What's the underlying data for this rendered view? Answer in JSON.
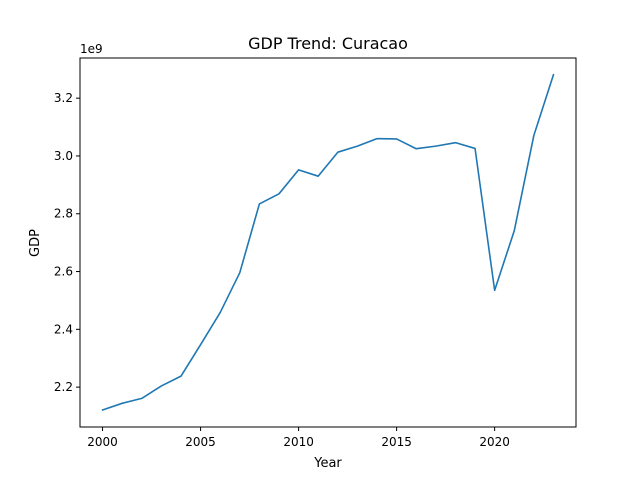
{
  "chart_data": {
    "type": "line",
    "title": "GDP Trend: Curacao",
    "xlabel": "Year",
    "ylabel": "GDP",
    "y_offset_label": "1e9",
    "xlim": [
      1998.85,
      2024.15
    ],
    "ylim": [
      2.062,
      3.339
    ],
    "x_ticks": [
      2000,
      2005,
      2010,
      2015,
      2020
    ],
    "x_tick_labels": [
      "2000",
      "2005",
      "2010",
      "2015",
      "2020"
    ],
    "y_ticks": [
      2.2,
      2.4,
      2.6,
      2.8,
      3.0,
      3.2
    ],
    "y_tick_labels": [
      "2.2",
      "2.4",
      "2.6",
      "2.8",
      "3.0",
      "3.2"
    ],
    "grid": false,
    "legend": "none",
    "color": "#1f77b4",
    "series": [
      {
        "x": [
          2000,
          2001,
          2002,
          2003,
          2004,
          2005,
          2006,
          2007,
          2008,
          2009,
          2010,
          2011,
          2012,
          2013,
          2014,
          2015,
          2016,
          2017,
          2018,
          2019,
          2020,
          2021,
          2022,
          2023
        ],
        "values": [
          2.121,
          2.144,
          2.161,
          2.204,
          2.238,
          2.347,
          2.458,
          2.596,
          2.834,
          2.869,
          2.952,
          2.93,
          3.013,
          3.034,
          3.06,
          3.059,
          3.025,
          3.034,
          3.046,
          3.026,
          2.535,
          2.741,
          3.071,
          3.281
        ]
      }
    ]
  }
}
